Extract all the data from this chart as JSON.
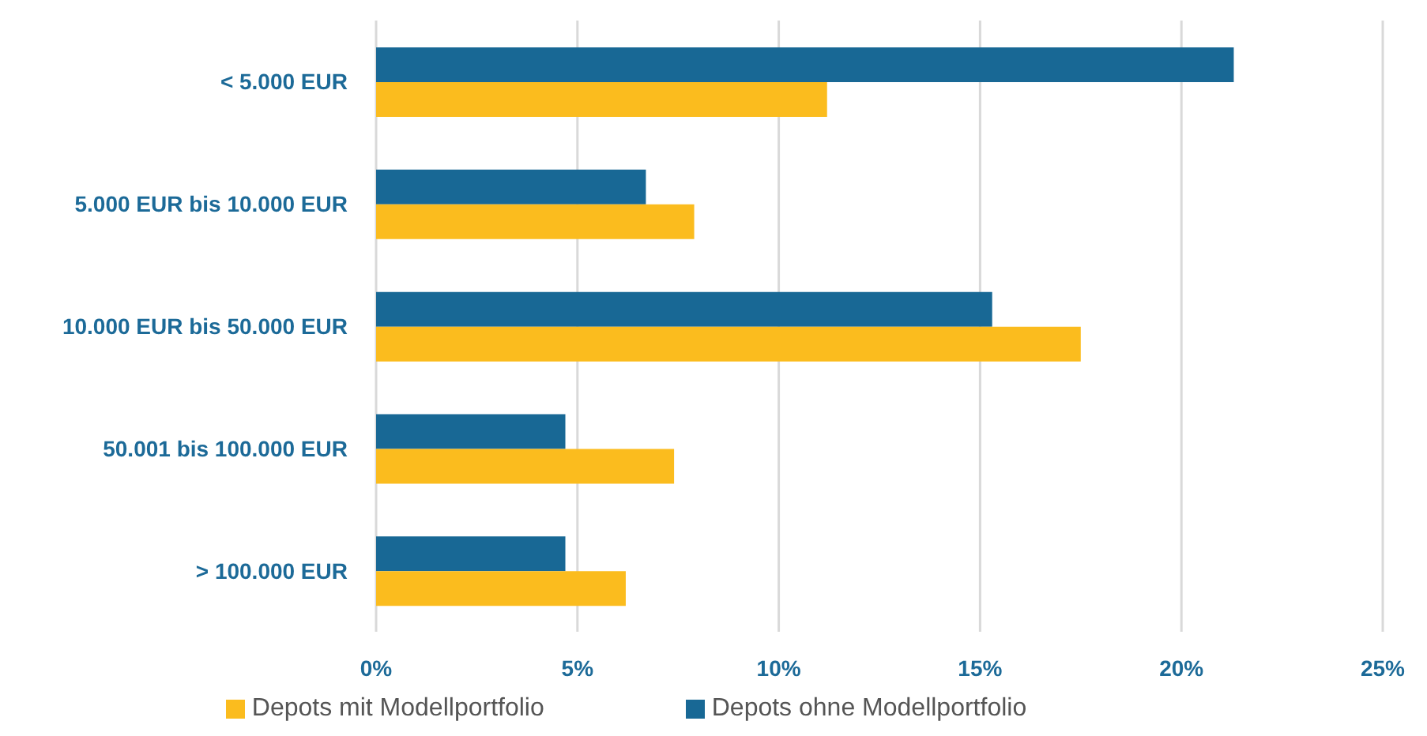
{
  "chart_data": {
    "type": "bar",
    "orientation": "horizontal",
    "categories": [
      "< 5.000 EUR",
      "5.000 EUR bis 10.000 EUR",
      "10.000 EUR bis 50.000 EUR",
      "50.001 bis 100.000 EUR",
      "> 100.000 EUR"
    ],
    "series": [
      {
        "name": "Depots ohne Modellportfolio",
        "color": "#186895",
        "values": [
          21.3,
          6.7,
          15.3,
          4.7,
          4.7
        ]
      },
      {
        "name": "Depots mit Modellportfolio",
        "color": "#fbbc1e",
        "values": [
          11.2,
          7.9,
          17.5,
          7.4,
          6.2
        ]
      }
    ],
    "xlim": [
      0,
      25
    ],
    "xticks": [
      {
        "value": 0,
        "label": "0%"
      },
      {
        "value": 5,
        "label": "5%"
      },
      {
        "value": 10,
        "label": "10%"
      },
      {
        "value": 15,
        "label": "15%"
      },
      {
        "value": 20,
        "label": "20%"
      },
      {
        "value": 25,
        "label": "25%"
      }
    ],
    "grid": "x",
    "legend": "bottom"
  }
}
